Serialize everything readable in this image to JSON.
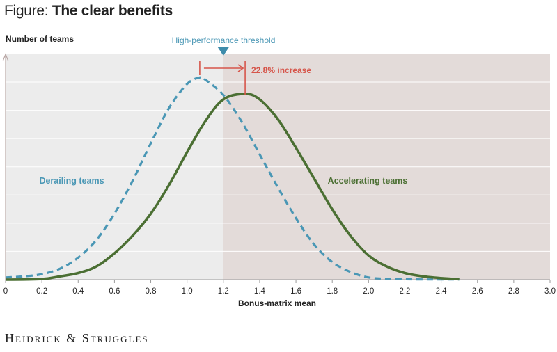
{
  "figure": {
    "prefix": "Figure:",
    "title": "The clear benefits"
  },
  "brand": "Heidrick & Struggles",
  "colors": {
    "derailing": "#4a97b5",
    "accelerating": "#4b6f33",
    "increase": "#d6554a",
    "threshold_marker": "#3e8cab",
    "left_bg": "#ececec",
    "right_bg": "#e3dbd9",
    "grid": "#ffffff",
    "axis": "#b8a6a4"
  },
  "chart_data": {
    "type": "line",
    "title": "The clear benefits",
    "xlabel": "Bonus-matrix mean",
    "ylabel": "Number of teams",
    "xlim": [
      0,
      3.0
    ],
    "ylim": [
      0,
      1.0
    ],
    "x_ticks": [
      "0",
      "0.2",
      "0.4",
      "0.6",
      "0.8",
      "1.0",
      "1.2",
      "1.4",
      "1.6",
      "1.8",
      "2.0",
      "2.2",
      "2.4",
      "2.6",
      "2.8",
      "3.0"
    ],
    "y_gridlines": 7,
    "threshold": {
      "x": 1.2,
      "label": "High-performance threshold"
    },
    "shaded_region": {
      "from": 1.2,
      "to": 3.0
    },
    "annotation": {
      "label": "22.8% increase",
      "from_x": 1.07,
      "to_x": 1.32
    },
    "series": [
      {
        "name": "Derailing teams",
        "style": "dashed",
        "x": [
          0,
          0.1,
          0.2,
          0.3,
          0.4,
          0.5,
          0.6,
          0.7,
          0.8,
          0.9,
          1.0,
          1.07,
          1.1,
          1.2,
          1.3,
          1.4,
          1.5,
          1.6,
          1.7,
          1.8,
          1.9,
          2.0,
          2.1,
          2.2,
          2.3,
          2.4,
          2.5
        ],
        "y": [
          0.01,
          0.015,
          0.025,
          0.05,
          0.1,
          0.18,
          0.3,
          0.45,
          0.62,
          0.78,
          0.89,
          0.92,
          0.91,
          0.84,
          0.72,
          0.57,
          0.42,
          0.28,
          0.16,
          0.08,
          0.035,
          0.01,
          0.004,
          0.002,
          0.001,
          0.001,
          0.001
        ]
      },
      {
        "name": "Accelerating teams",
        "style": "solid",
        "x": [
          0,
          0.2,
          0.3,
          0.4,
          0.5,
          0.6,
          0.7,
          0.8,
          0.9,
          1.0,
          1.1,
          1.2,
          1.32,
          1.4,
          1.5,
          1.6,
          1.7,
          1.8,
          1.9,
          2.0,
          2.1,
          2.2,
          2.3,
          2.4,
          2.5
        ],
        "y": [
          0.0,
          0.003,
          0.015,
          0.03,
          0.06,
          0.12,
          0.2,
          0.3,
          0.43,
          0.58,
          0.72,
          0.82,
          0.845,
          0.82,
          0.73,
          0.6,
          0.46,
          0.32,
          0.2,
          0.11,
          0.06,
          0.03,
          0.015,
          0.007,
          0.002
        ]
      }
    ]
  }
}
